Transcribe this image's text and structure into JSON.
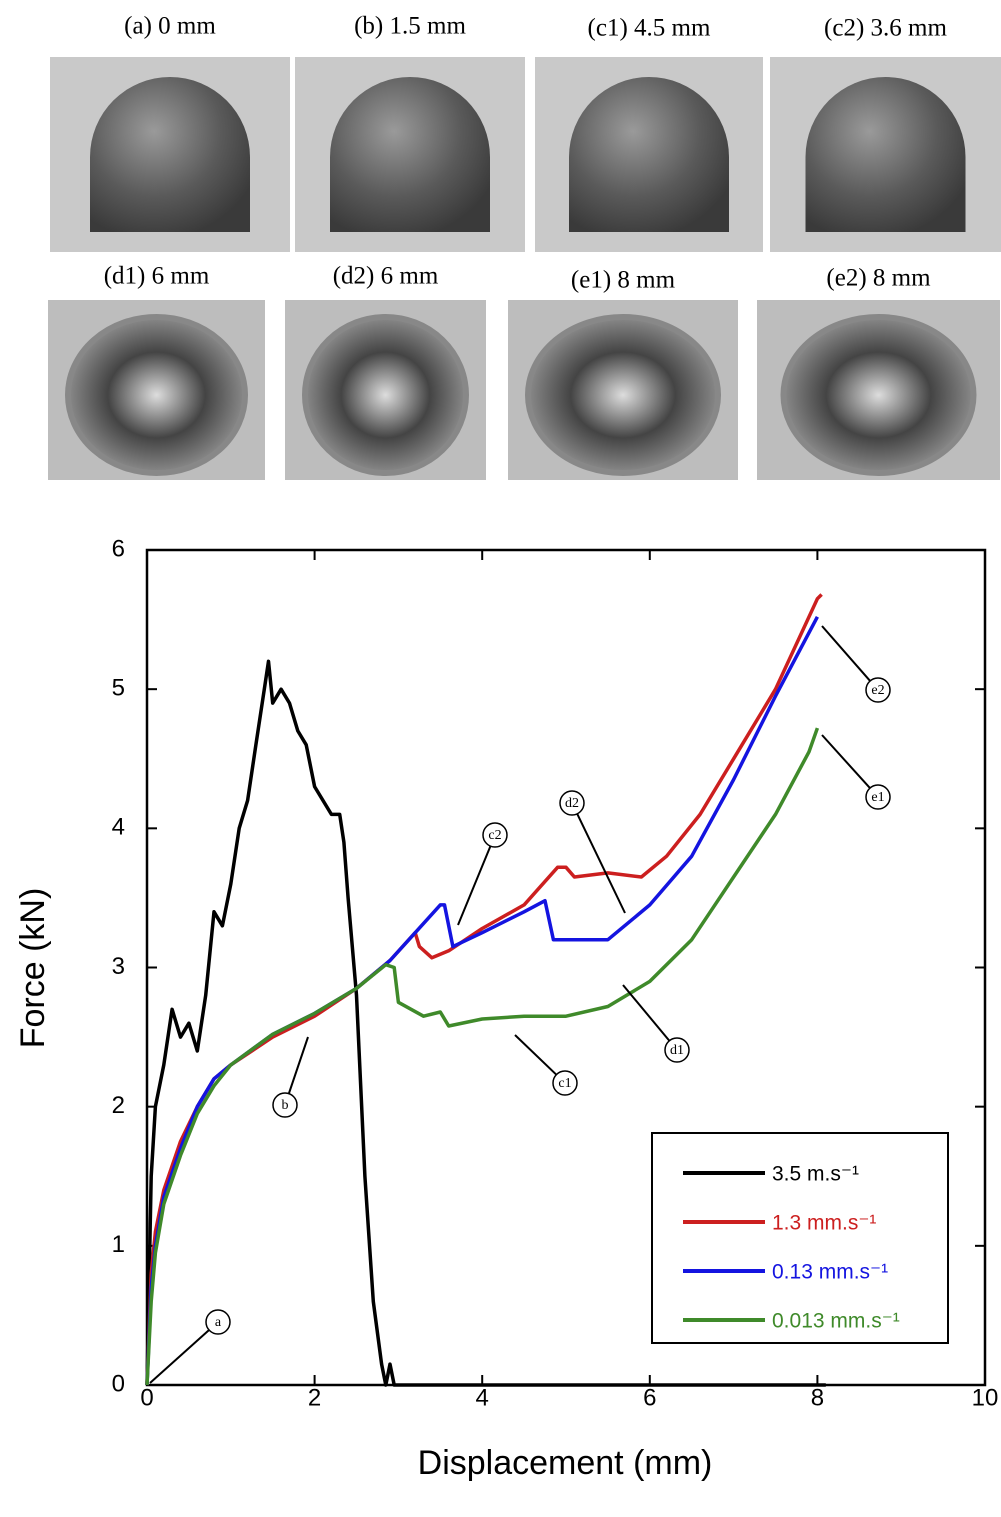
{
  "photos": [
    {
      "caption": "(a) 0 mm"
    },
    {
      "caption": "(b) 1.5 mm"
    },
    {
      "caption": "(c1) 4.5 mm"
    },
    {
      "caption": "(c2) 3.6 mm"
    },
    {
      "caption": "(d1) 6 mm"
    },
    {
      "caption": "(d2) 6 mm"
    },
    {
      "caption": "(e1) 8 mm"
    },
    {
      "caption": "(e2) 8 mm"
    }
  ],
  "chart_data": {
    "type": "line",
    "x_label": "Displacement (mm)",
    "y_label": "Force (kN)",
    "xlim": [
      0,
      10
    ],
    "ylim": [
      0,
      6
    ],
    "xticks": [
      0,
      2,
      4,
      6,
      8,
      10
    ],
    "yticks": [
      0,
      1,
      2,
      3,
      4,
      5,
      6
    ],
    "grid": false,
    "legend": "lower right",
    "annotations": [
      "a",
      "b",
      "c1",
      "c2",
      "d1",
      "d2",
      "e1",
      "e2"
    ],
    "series": [
      {
        "name": "3.5 m.s⁻¹",
        "color": "#000000",
        "x": [
          0,
          0.05,
          0.1,
          0.2,
          0.3,
          0.4,
          0.5,
          0.6,
          0.7,
          0.8,
          0.9,
          1.0,
          1.1,
          1.2,
          1.3,
          1.4,
          1.45,
          1.5,
          1.6,
          1.7,
          1.8,
          1.9,
          2.0,
          2.1,
          2.2,
          2.3,
          2.35,
          2.4,
          2.5,
          2.6,
          2.7,
          2.8,
          2.85,
          2.9,
          2.95,
          8.1
        ],
        "values": [
          0,
          1.5,
          2.0,
          2.3,
          2.7,
          2.5,
          2.6,
          2.4,
          2.8,
          3.4,
          3.3,
          3.6,
          4.0,
          4.2,
          4.6,
          5.0,
          5.2,
          4.9,
          5.0,
          4.9,
          4.7,
          4.6,
          4.3,
          4.2,
          4.1,
          4.1,
          3.9,
          3.5,
          2.8,
          1.5,
          0.6,
          0.15,
          0,
          0.15,
          0,
          0
        ]
      },
      {
        "name": "1.3 mm.s⁻¹",
        "color": "#cc1f1f",
        "x": [
          0,
          0.05,
          0.1,
          0.2,
          0.4,
          0.6,
          0.8,
          1.0,
          1.5,
          2.0,
          2.5,
          2.9,
          3.2,
          3.25,
          3.4,
          3.6,
          4.0,
          4.5,
          4.9,
          5.0,
          5.1,
          5.5,
          5.9,
          6.2,
          6.6,
          7.0,
          7.5,
          8.0,
          8.05
        ],
        "values": [
          0,
          0.8,
          1.1,
          1.4,
          1.75,
          2.0,
          2.2,
          2.3,
          2.5,
          2.65,
          2.85,
          3.05,
          3.25,
          3.15,
          3.07,
          3.12,
          3.28,
          3.45,
          3.72,
          3.72,
          3.65,
          3.68,
          3.65,
          3.8,
          4.1,
          4.5,
          5.0,
          5.65,
          5.68
        ]
      },
      {
        "name": "0.13 mm.s⁻¹",
        "color": "#1414e0",
        "x": [
          0,
          0.05,
          0.1,
          0.2,
          0.4,
          0.6,
          0.8,
          1.0,
          1.5,
          2.0,
          2.5,
          2.9,
          3.2,
          3.5,
          3.55,
          3.65,
          4.0,
          4.5,
          4.75,
          4.85,
          5.5,
          6.0,
          6.5,
          7.0,
          7.5,
          8.0
        ],
        "values": [
          0,
          0.7,
          1.0,
          1.35,
          1.7,
          2.0,
          2.2,
          2.3,
          2.52,
          2.67,
          2.85,
          3.05,
          3.25,
          3.45,
          3.45,
          3.15,
          3.25,
          3.4,
          3.48,
          3.2,
          3.2,
          3.45,
          3.8,
          4.35,
          4.95,
          5.52
        ]
      },
      {
        "name": "0.013 mm.s⁻¹",
        "color": "#3f8a2a",
        "x": [
          0,
          0.05,
          0.1,
          0.2,
          0.4,
          0.6,
          0.8,
          1.0,
          1.5,
          2.0,
          2.5,
          2.85,
          2.95,
          3.0,
          3.3,
          3.5,
          3.6,
          4.0,
          4.5,
          5.0,
          5.5,
          6.0,
          6.5,
          7.0,
          7.5,
          7.9,
          8.0
        ],
        "values": [
          0,
          0.6,
          0.95,
          1.3,
          1.65,
          1.95,
          2.15,
          2.3,
          2.52,
          2.67,
          2.85,
          3.02,
          3.0,
          2.75,
          2.65,
          2.68,
          2.58,
          2.63,
          2.65,
          2.65,
          2.72,
          2.9,
          3.2,
          3.65,
          4.1,
          4.55,
          4.72
        ]
      }
    ]
  }
}
